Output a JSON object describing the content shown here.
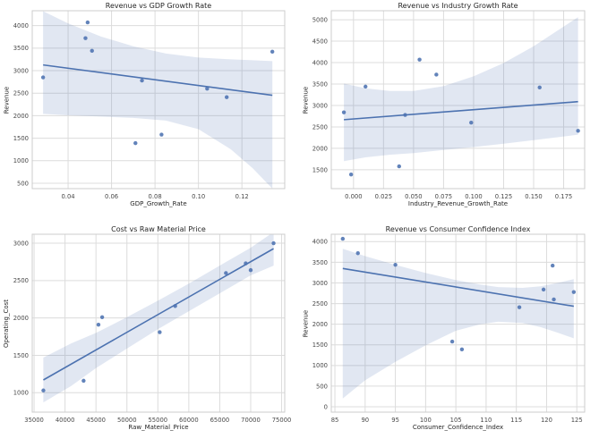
{
  "figure": {
    "background": "#ffffff",
    "accent_color": "#4c72b0",
    "band_opacity": 0.17,
    "grid_color": "#dcdcdc",
    "spine_color": "#cccccc",
    "tick_label_color": "#4a4a4a",
    "text_color": "#262626",
    "grid": "on",
    "legend": "none"
  },
  "chart_data": [
    {
      "type": "scatter",
      "fit": "linear-regression-with-ci-band",
      "title": "Revenue vs GDP Growth Rate",
      "xlabel": "GDP_Growth_Rate",
      "ylabel": "Revenue",
      "xlim": [
        0.0235,
        0.1397
      ],
      "ylim": [
        380,
        4330
      ],
      "xticks": {
        "values": [
          0.04,
          0.06,
          0.08,
          0.1,
          0.12
        ],
        "labels": [
          "0.04",
          "0.06",
          "0.08",
          "0.10",
          "0.12"
        ]
      },
      "yticks": {
        "values": [
          500,
          1000,
          1500,
          2000,
          2500,
          3000,
          3500,
          4000
        ],
        "labels": [
          "500",
          "1000",
          "1500",
          "2000",
          "2500",
          "3000",
          "3500",
          "4000"
        ]
      },
      "points": [
        [
          0.0285,
          2850
        ],
        [
          0.048,
          3720
        ],
        [
          0.049,
          4070
        ],
        [
          0.051,
          3440
        ],
        [
          0.071,
          1390
        ],
        [
          0.074,
          2780
        ],
        [
          0.083,
          1580
        ],
        [
          0.104,
          2600
        ],
        [
          0.113,
          2410
        ],
        [
          0.134,
          3420
        ]
      ],
      "ci_band": [
        [
          0.0285,
          2040,
          4320
        ],
        [
          0.04,
          2010,
          4050
        ],
        [
          0.055,
          1980,
          3760
        ],
        [
          0.07,
          1950,
          3540
        ],
        [
          0.085,
          1890,
          3380
        ],
        [
          0.1,
          1700,
          3290
        ],
        [
          0.115,
          1250,
          3250
        ],
        [
          0.125,
          830,
          3230
        ],
        [
          0.134,
          380,
          3210
        ]
      ]
    },
    {
      "type": "scatter",
      "fit": "linear-regression-with-ci-band",
      "title": "Revenue vs Industry Growth Rate",
      "xlabel": "Industry_Revenue_Growth_Rate",
      "ylabel": "Revenue",
      "xlim": [
        -0.0185,
        0.1925
      ],
      "ylim": [
        1060,
        5210
      ],
      "xticks": {
        "values": [
          0.0,
          0.025,
          0.05,
          0.075,
          0.1,
          0.125,
          0.15,
          0.175
        ],
        "labels": [
          "0.000",
          "0.025",
          "0.050",
          "0.075",
          "0.100",
          "0.125",
          "0.150",
          "0.175"
        ]
      },
      "yticks": {
        "values": [
          1500,
          2000,
          2500,
          3000,
          3500,
          4000,
          4500,
          5000
        ],
        "labels": [
          "1500",
          "2000",
          "2500",
          "3000",
          "3500",
          "4000",
          "4500",
          "5000"
        ]
      },
      "points": [
        [
          -0.008,
          2840
        ],
        [
          -0.002,
          1390
        ],
        [
          0.01,
          3440
        ],
        [
          0.038,
          1580
        ],
        [
          0.043,
          2780
        ],
        [
          0.055,
          4070
        ],
        [
          0.069,
          3720
        ],
        [
          0.098,
          2600
        ],
        [
          0.155,
          3420
        ],
        [
          0.187,
          2410
        ]
      ],
      "ci_band": [
        [
          -0.008,
          1700,
          3510
        ],
        [
          0.01,
          1790,
          3400
        ],
        [
          0.03,
          1850,
          3340
        ],
        [
          0.05,
          1890,
          3340
        ],
        [
          0.075,
          1960,
          3450
        ],
        [
          0.1,
          2030,
          3680
        ],
        [
          0.125,
          2110,
          3990
        ],
        [
          0.15,
          2190,
          4380
        ],
        [
          0.17,
          2260,
          4750
        ],
        [
          0.187,
          2320,
          5060
        ]
      ]
    },
    {
      "type": "scatter",
      "fit": "linear-regression-with-ci-band",
      "title": "Cost vs Raw Material Price",
      "xlabel": "Raw_Material_Price",
      "ylabel": "Operating_Cost",
      "xlim": [
        34700,
        75500
      ],
      "ylim": [
        740,
        3120
      ],
      "xticks": {
        "values": [
          35000,
          40000,
          45000,
          50000,
          55000,
          60000,
          65000,
          70000,
          75000
        ],
        "labels": [
          "35000",
          "40000",
          "45000",
          "50000",
          "55000",
          "60000",
          "65000",
          "70000",
          "75000"
        ]
      },
      "yticks": {
        "values": [
          1000,
          1500,
          2000,
          2500,
          3000
        ],
        "labels": [
          "1000",
          "1500",
          "2000",
          "2500",
          "3000"
        ]
      },
      "points": [
        [
          36500,
          1030
        ],
        [
          43000,
          1160
        ],
        [
          45400,
          1910
        ],
        [
          46000,
          2010
        ],
        [
          55300,
          1810
        ],
        [
          57800,
          2160
        ],
        [
          66000,
          2600
        ],
        [
          69200,
          2730
        ],
        [
          70000,
          2640
        ],
        [
          73700,
          3000
        ]
      ],
      "ci_band": [
        [
          36500,
          870,
          1470
        ],
        [
          41000,
          1090,
          1660
        ],
        [
          45000,
          1330,
          1800
        ],
        [
          50000,
          1590,
          2010
        ],
        [
          55000,
          1850,
          2230
        ],
        [
          60000,
          2090,
          2460
        ],
        [
          65000,
          2330,
          2700
        ],
        [
          70000,
          2570,
          2940
        ],
        [
          73700,
          2700,
          3150
        ]
      ]
    },
    {
      "type": "scatter",
      "fit": "linear-regression-with-ci-band",
      "title": "Revenue vs Consumer Confidence Index",
      "xlabel": "Consumer_Confidence_Index",
      "ylabel": "Revenue",
      "xlim": [
        84.4,
        126.3
      ],
      "ylim": [
        -130,
        4180
      ],
      "xticks": {
        "values": [
          85,
          90,
          95,
          100,
          105,
          110,
          115,
          120,
          125
        ],
        "labels": [
          "85",
          "90",
          "95",
          "100",
          "105",
          "110",
          "115",
          "120",
          "125"
        ]
      },
      "yticks": {
        "values": [
          0,
          500,
          1000,
          1500,
          2000,
          2500,
          3000,
          3500,
          4000
        ],
        "labels": [
          "0",
          "500",
          "1000",
          "1500",
          "2000",
          "2500",
          "3000",
          "3500",
          "4000"
        ]
      },
      "points": [
        [
          86.3,
          4070
        ],
        [
          88.8,
          3720
        ],
        [
          95.0,
          3440
        ],
        [
          104.4,
          1580
        ],
        [
          106.0,
          1390
        ],
        [
          115.5,
          2410
        ],
        [
          119.5,
          2840
        ],
        [
          121.0,
          3420
        ],
        [
          121.2,
          2600
        ],
        [
          124.5,
          2780
        ]
      ],
      "ci_band": [
        [
          86.3,
          200,
          3830
        ],
        [
          90,
          640,
          3650
        ],
        [
          95,
          1090,
          3440
        ],
        [
          100,
          1490,
          3240
        ],
        [
          105,
          1840,
          3070
        ],
        [
          109,
          2000,
          2960
        ],
        [
          112,
          2060,
          2900
        ],
        [
          116,
          2030,
          2880
        ],
        [
          119,
          1930,
          2920
        ],
        [
          121.5,
          1810,
          2990
        ],
        [
          124.5,
          1660,
          3090
        ]
      ]
    }
  ]
}
